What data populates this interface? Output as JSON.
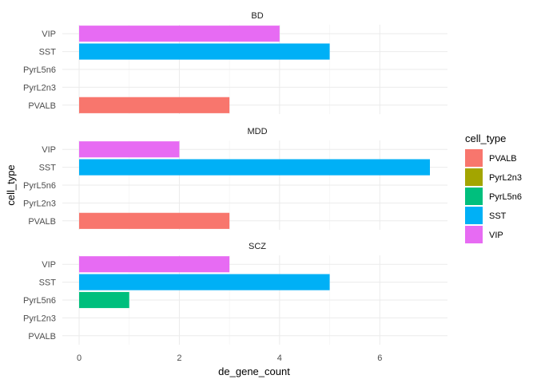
{
  "chart_data": {
    "type": "bar",
    "orientation": "horizontal",
    "facet_var": "",
    "xlabel": "de_gene_count",
    "ylabel": "cell_type",
    "xlim": [
      0,
      7
    ],
    "x_ticks": [
      0,
      2,
      4,
      6
    ],
    "categories": [
      "PVALB",
      "PyrL2n3",
      "PyrL5n6",
      "SST",
      "VIP"
    ],
    "legend": {
      "title": "cell_type",
      "placement": "right",
      "items": [
        {
          "label": "PVALB",
          "color": "#F8766D"
        },
        {
          "label": "PyrL2n3",
          "color": "#A3A500"
        },
        {
          "label": "PyrL5n6",
          "color": "#00BF7D"
        },
        {
          "label": "SST",
          "color": "#00B0F6"
        },
        {
          "label": "VIP",
          "color": "#E76BF3"
        }
      ]
    },
    "grid": true,
    "panels": [
      {
        "title": "BD",
        "values": [
          3,
          0,
          0,
          5,
          4
        ]
      },
      {
        "title": "MDD",
        "values": [
          3,
          0,
          0,
          7,
          2
        ]
      },
      {
        "title": "SCZ",
        "values": [
          0,
          0,
          1,
          5,
          3
        ]
      }
    ]
  }
}
